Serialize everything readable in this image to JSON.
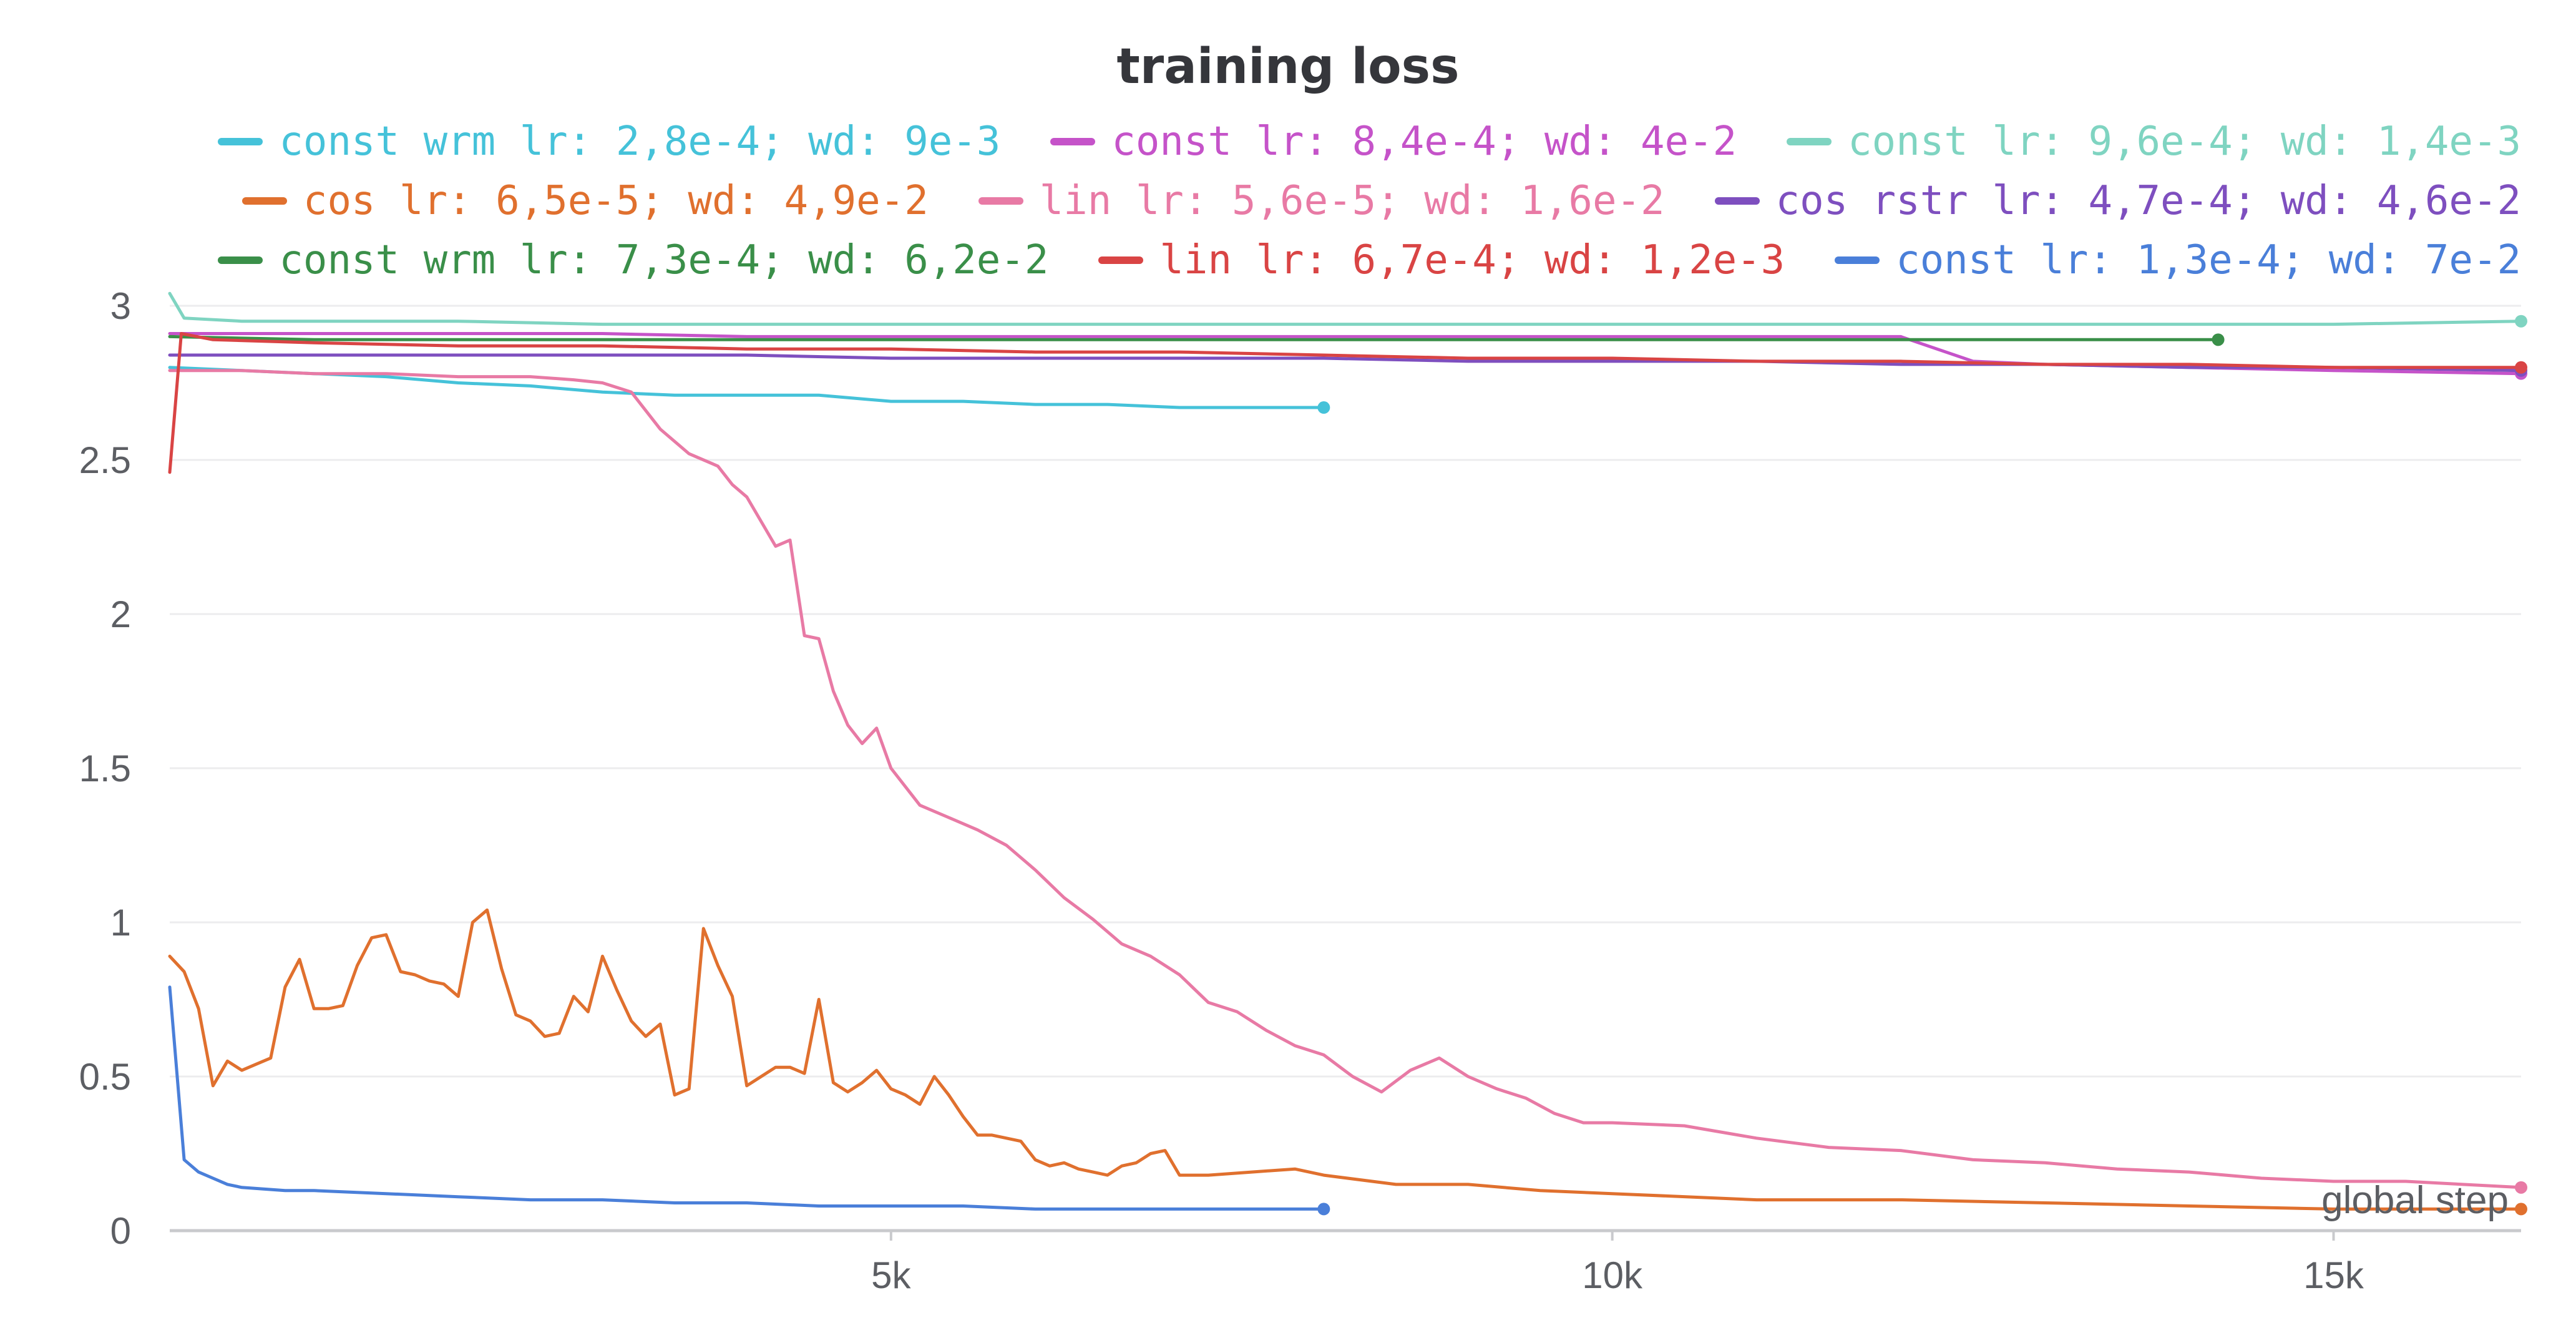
{
  "chart_data": {
    "type": "line",
    "title": "training loss",
    "xlabel": "global step",
    "ylabel": "",
    "xlim": [
      0,
      16300
    ],
    "ylim": [
      0,
      3
    ],
    "xticks": [
      5000,
      10000,
      15000
    ],
    "xtick_labels": [
      "5k",
      "10k",
      "15k"
    ],
    "yticks": [
      0,
      0.5,
      1,
      1.5,
      2,
      2.5,
      3
    ],
    "ytick_labels": [
      "0",
      "0.5",
      "1",
      "1.5",
      "2",
      "2.5",
      "3"
    ],
    "grid": "horizontal",
    "legend_position": "top",
    "series": [
      {
        "name": "const wrm lr: 2,8e-4; wd: 9e-3",
        "color": "#45c2d9",
        "x": [
          0,
          500,
          1000,
          1500,
          2000,
          2500,
          3000,
          3500,
          4000,
          4500,
          5000,
          5500,
          6000,
          6500,
          7000,
          7500,
          8000
        ],
        "y": [
          2.8,
          2.79,
          2.78,
          2.77,
          2.75,
          2.74,
          2.72,
          2.71,
          2.71,
          2.71,
          2.69,
          2.69,
          2.68,
          2.68,
          2.67,
          2.67,
          2.67
        ]
      },
      {
        "name": "const lr: 8,4e-4; wd: 4e-2",
        "color": "#c553c9",
        "x": [
          0,
          1000,
          2000,
          3000,
          4000,
          5000,
          6000,
          7000,
          8000,
          9000,
          10000,
          11000,
          12000,
          12500,
          13000,
          14000,
          15000,
          16300
        ],
        "y": [
          2.91,
          2.91,
          2.91,
          2.91,
          2.9,
          2.9,
          2.9,
          2.9,
          2.9,
          2.9,
          2.9,
          2.9,
          2.9,
          2.82,
          2.81,
          2.8,
          2.79,
          2.78
        ]
      },
      {
        "name": "const lr: 9,6e-4; wd: 1,4e-3",
        "color": "#7fd4c1",
        "x": [
          0,
          100,
          500,
          1000,
          2000,
          3000,
          4000,
          5000,
          6000,
          7000,
          8000,
          9000,
          10000,
          11000,
          12000,
          13000,
          14000,
          15000,
          16300
        ],
        "y": [
          3.04,
          2.96,
          2.95,
          2.95,
          2.95,
          2.94,
          2.94,
          2.94,
          2.94,
          2.94,
          2.94,
          2.94,
          2.94,
          2.94,
          2.94,
          2.94,
          2.94,
          2.94,
          2.95
        ]
      },
      {
        "name": "cos lr: 6,5e-5; wd: 4,9e-2",
        "color": "#e0702e",
        "x": [
          0,
          100,
          200,
          300,
          400,
          500,
          600,
          700,
          800,
          900,
          1000,
          1100,
          1200,
          1300,
          1400,
          1500,
          1600,
          1700,
          1800,
          1900,
          2000,
          2100,
          2200,
          2300,
          2400,
          2500,
          2600,
          2700,
          2800,
          2900,
          3000,
          3100,
          3200,
          3300,
          3400,
          3500,
          3600,
          3700,
          3800,
          3900,
          4000,
          4100,
          4200,
          4300,
          4400,
          4500,
          4600,
          4700,
          4800,
          4900,
          5000,
          5100,
          5200,
          5300,
          5400,
          5500,
          5600,
          5700,
          5800,
          5900,
          6000,
          6100,
          6200,
          6300,
          6400,
          6500,
          6600,
          6700,
          6800,
          6900,
          7000,
          7200,
          7500,
          7800,
          8000,
          8500,
          9000,
          9500,
          10000,
          11000,
          12000,
          13000,
          14000,
          15000,
          16300
        ],
        "y": [
          0.89,
          0.84,
          0.72,
          0.47,
          0.55,
          0.52,
          0.54,
          0.56,
          0.79,
          0.88,
          0.72,
          0.72,
          0.73,
          0.86,
          0.95,
          0.96,
          0.84,
          0.83,
          0.81,
          0.8,
          0.76,
          1.0,
          1.04,
          0.85,
          0.7,
          0.68,
          0.63,
          0.64,
          0.76,
          0.71,
          0.89,
          0.78,
          0.68,
          0.63,
          0.67,
          0.44,
          0.46,
          0.98,
          0.86,
          0.76,
          0.47,
          0.5,
          0.53,
          0.53,
          0.51,
          0.75,
          0.48,
          0.45,
          0.48,
          0.52,
          0.46,
          0.44,
          0.41,
          0.5,
          0.44,
          0.37,
          0.31,
          0.31,
          0.3,
          0.29,
          0.23,
          0.21,
          0.22,
          0.2,
          0.19,
          0.18,
          0.21,
          0.22,
          0.25,
          0.26,
          0.18,
          0.18,
          0.19,
          0.2,
          0.18,
          0.15,
          0.15,
          0.13,
          0.12,
          0.1,
          0.1,
          0.09,
          0.08,
          0.07,
          0.07
        ]
      },
      {
        "name": "lin lr: 5,6e-5; wd: 1,6e-2",
        "color": "#e87aa5",
        "x": [
          0,
          500,
          1000,
          1500,
          2000,
          2500,
          2800,
          3000,
          3200,
          3400,
          3600,
          3800,
          3900,
          4000,
          4100,
          4200,
          4300,
          4400,
          4500,
          4600,
          4700,
          4800,
          4900,
          5000,
          5200,
          5400,
          5600,
          5800,
          6000,
          6200,
          6400,
          6600,
          6800,
          7000,
          7200,
          7400,
          7600,
          7800,
          8000,
          8200,
          8400,
          8600,
          8800,
          9000,
          9200,
          9400,
          9600,
          9800,
          10000,
          10500,
          11000,
          11500,
          12000,
          12500,
          13000,
          13500,
          14000,
          14500,
          15000,
          15500,
          16300
        ],
        "y": [
          2.79,
          2.79,
          2.78,
          2.78,
          2.77,
          2.77,
          2.76,
          2.75,
          2.72,
          2.6,
          2.52,
          2.48,
          2.42,
          2.38,
          2.3,
          2.22,
          2.24,
          1.93,
          1.92,
          1.75,
          1.64,
          1.58,
          1.63,
          1.5,
          1.38,
          1.34,
          1.3,
          1.25,
          1.17,
          1.08,
          1.01,
          0.93,
          0.89,
          0.83,
          0.74,
          0.71,
          0.65,
          0.6,
          0.57,
          0.5,
          0.45,
          0.52,
          0.56,
          0.5,
          0.46,
          0.43,
          0.38,
          0.35,
          0.35,
          0.34,
          0.3,
          0.27,
          0.26,
          0.23,
          0.22,
          0.2,
          0.19,
          0.17,
          0.16,
          0.16,
          0.14
        ]
      },
      {
        "name": "cos rstr lr: 4,7e-4; wd: 4,6e-2",
        "color": "#7e4fbf",
        "x": [
          0,
          1000,
          2000,
          3000,
          4000,
          5000,
          6000,
          7000,
          8000,
          9000,
          10000,
          11000,
          12000,
          13000,
          14000,
          15000,
          16300
        ],
        "y": [
          2.84,
          2.84,
          2.84,
          2.84,
          2.84,
          2.83,
          2.83,
          2.83,
          2.83,
          2.82,
          2.82,
          2.82,
          2.81,
          2.81,
          2.8,
          2.8,
          2.79
        ]
      },
      {
        "name": "const wrm lr: 7,3e-4; wd: 6,2e-2",
        "color": "#3a8f49",
        "x": [
          0,
          1000,
          2000,
          3000,
          4000,
          5000,
          6000,
          7000,
          8000,
          9000,
          10000,
          11000,
          12000,
          13000,
          14200
        ],
        "y": [
          2.9,
          2.89,
          2.89,
          2.89,
          2.89,
          2.89,
          2.89,
          2.89,
          2.89,
          2.89,
          2.89,
          2.89,
          2.89,
          2.89,
          2.89
        ]
      },
      {
        "name": "lin lr: 6,7e-4; wd: 1,2e-3",
        "color": "#d94444",
        "x": [
          0,
          80,
          300,
          1000,
          2000,
          3000,
          4000,
          5000,
          6000,
          7000,
          8000,
          9000,
          10000,
          11000,
          12000,
          13000,
          14000,
          15000,
          16300
        ],
        "y": [
          2.46,
          2.91,
          2.89,
          2.88,
          2.87,
          2.87,
          2.86,
          2.86,
          2.85,
          2.85,
          2.84,
          2.83,
          2.83,
          2.82,
          2.82,
          2.81,
          2.81,
          2.8,
          2.8
        ]
      },
      {
        "name": "const lr: 1,3e-4; wd: 7e-2",
        "color": "#4a7fd9",
        "x": [
          0,
          100,
          200,
          300,
          400,
          500,
          800,
          1000,
          1500,
          2000,
          2500,
          3000,
          3500,
          4000,
          4500,
          5000,
          5500,
          6000,
          6500,
          7000,
          7500,
          8000
        ],
        "y": [
          0.79,
          0.23,
          0.19,
          0.17,
          0.15,
          0.14,
          0.13,
          0.13,
          0.12,
          0.11,
          0.1,
          0.1,
          0.09,
          0.09,
          0.08,
          0.08,
          0.08,
          0.07,
          0.07,
          0.07,
          0.07,
          0.07
        ]
      }
    ]
  }
}
